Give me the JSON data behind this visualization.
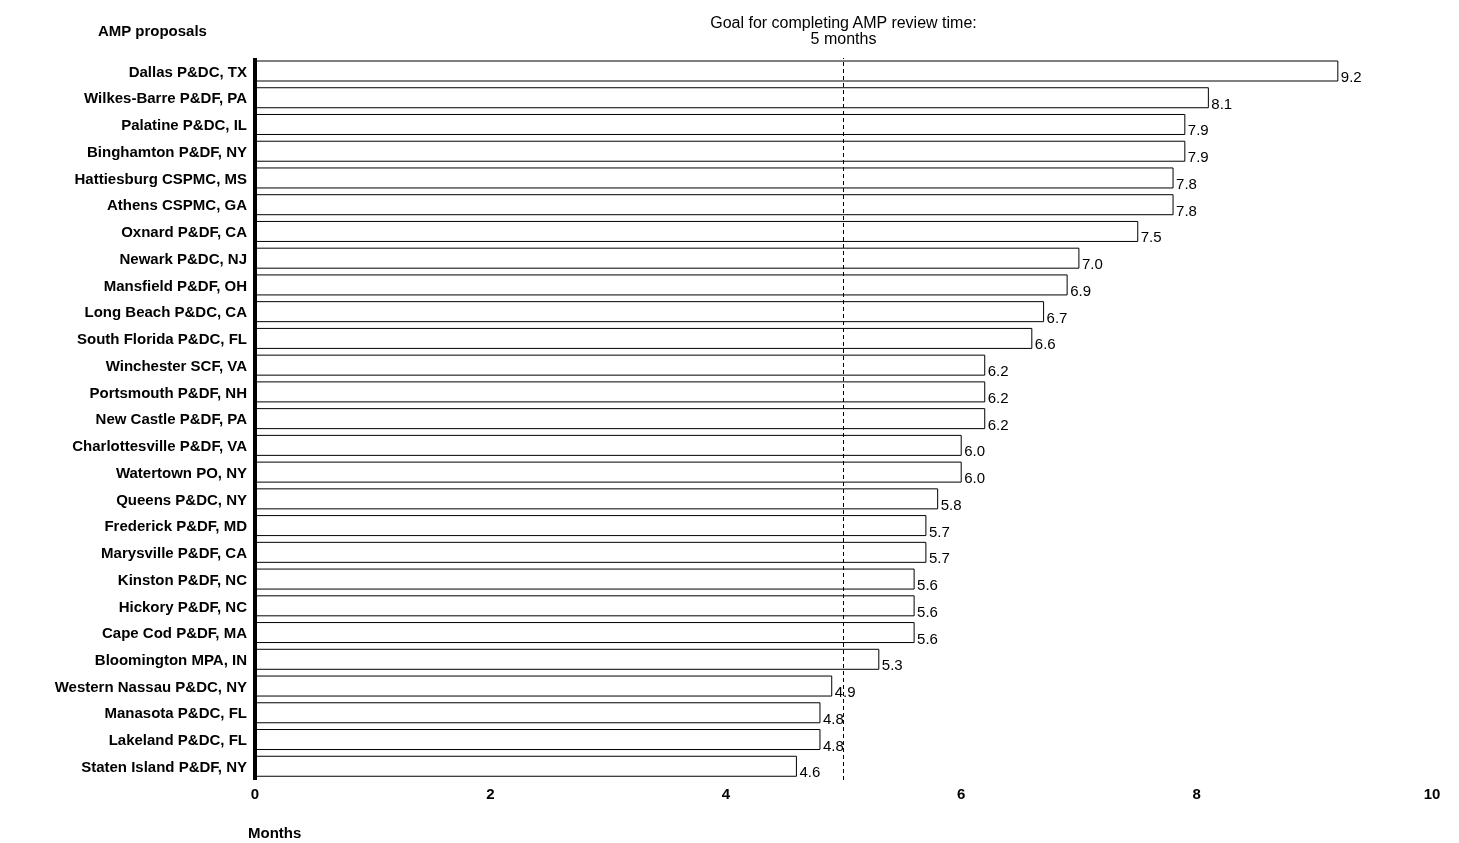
{
  "chart_data": {
    "type": "bar",
    "orientation": "horizontal",
    "ylabel": "AMP proposals",
    "xlabel": "Months",
    "categories": [
      "Dallas P&DC, TX",
      "Wilkes-Barre P&DF, PA",
      "Palatine P&DC, IL",
      "Binghamton P&DF, NY",
      "Hattiesburg CSPMC, MS",
      "Athens CSPMC, GA",
      "Oxnard P&DF, CA",
      "Newark P&DC, NJ",
      "Mansfield P&DF, OH",
      "Long Beach P&DC, CA",
      "South Florida P&DC, FL",
      "Winchester SCF, VA",
      "Portsmouth P&DF, NH",
      "New Castle P&DF, PA",
      "Charlottesville P&DF, VA",
      "Watertown PO, NY",
      "Queens P&DC, NY",
      "Frederick P&DF, MD",
      "Marysville P&DF, CA",
      "Kinston P&DF, NC",
      "Hickory P&DF, NC",
      "Cape Cod P&DF, MA",
      "Bloomington MPA, IN",
      "Western Nassau P&DC, NY",
      "Manasota P&DC, FL",
      "Lakeland P&DC, FL",
      "Staten Island P&DF, NY"
    ],
    "values": [
      9.2,
      8.1,
      7.9,
      7.9,
      7.8,
      7.8,
      7.5,
      7.0,
      6.9,
      6.7,
      6.6,
      6.2,
      6.2,
      6.2,
      6.0,
      6.0,
      5.8,
      5.7,
      5.7,
      5.6,
      5.6,
      5.6,
      5.3,
      4.9,
      4.8,
      4.8,
      4.6
    ],
    "value_labels": [
      "9.2",
      "8.1",
      "7.9",
      "7.9",
      "7.8",
      "7.8",
      "7.5",
      "7.0",
      "6.9",
      "6.7",
      "6.6",
      "6.2",
      "6.2",
      "6.2",
      "6.0",
      "6.0",
      "5.8",
      "5.7",
      "5.7",
      "5.6",
      "5.6",
      "5.6",
      "5.3",
      "4.9",
      "4.8",
      "4.8",
      "4.6"
    ],
    "color": "#ffffff",
    "xlim": [
      0,
      10
    ],
    "xticks": [
      0,
      2,
      4,
      6,
      8,
      10
    ],
    "ref_lines": [
      {
        "axis": "x",
        "value": 5,
        "label": "Goal for completing AMP review time:\n5 months",
        "line_style": "dashed",
        "color": "#000000"
      }
    ],
    "grid": false,
    "legend": false
  }
}
